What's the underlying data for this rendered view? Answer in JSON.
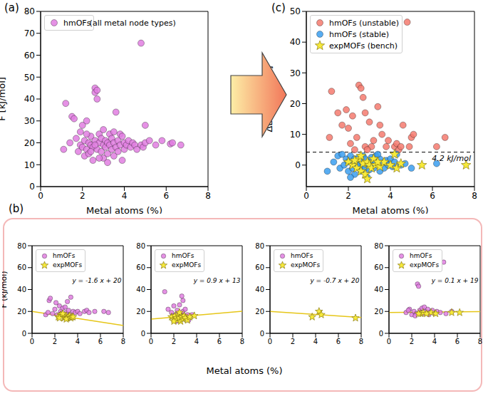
{
  "chart_data": [
    {
      "type": "scatter",
      "title": "(a)",
      "xlabel": "Metal atoms (%)",
      "ylabel": "F [kJ/mol]",
      "xlim": [
        0,
        8
      ],
      "xticks": [
        0,
        2,
        4,
        6,
        8
      ],
      "ylim": [
        0,
        80
      ],
      "yticks": [
        0,
        10,
        20,
        30,
        40,
        50,
        60,
        70,
        80
      ],
      "legend": "upper left",
      "annotations": [
        "(all metal node types)"
      ],
      "series": [
        {
          "name": "hmOFs",
          "color": "#e07ee0",
          "marker": "circle",
          "x": [
            1.2,
            1.1,
            1.5,
            1.6,
            1.7,
            1.8,
            1.9,
            2.0,
            2.0,
            2.1,
            2.1,
            2.2,
            2.2,
            2.3,
            2.3,
            2.4,
            2.4,
            2.5,
            2.5,
            2.6,
            2.6,
            2.6,
            2.7,
            2.7,
            2.7,
            2.8,
            2.8,
            2.9,
            2.9,
            3.0,
            3.0,
            3.0,
            3.1,
            3.1,
            3.2,
            3.2,
            3.3,
            3.3,
            3.4,
            3.4,
            3.5,
            3.5,
            3.6,
            3.6,
            3.7,
            3.7,
            3.8,
            3.8,
            3.9,
            4.0,
            4.0,
            4.1,
            4.2,
            4.3,
            4.4,
            4.5,
            4.6,
            4.8,
            4.8,
            4.9,
            5.0,
            5.0,
            5.2,
            5.5,
            5.8,
            6.2,
            6.3,
            6.7,
            1.4,
            1.9,
            2.4,
            2.8,
            3.2,
            3.9,
            2.2,
            2.6,
            3.5
          ],
          "values": [
            38,
            17,
            32,
            31,
            22,
            16,
            19,
            28,
            18,
            14,
            21,
            30,
            17,
            20,
            15,
            19,
            23,
            12,
            18,
            45,
            43,
            21,
            44,
            40,
            17,
            20,
            24,
            16,
            22,
            26,
            19,
            13,
            21,
            18,
            20,
            15,
            24,
            19,
            17,
            22,
            20,
            14,
            34,
            18,
            21,
            16,
            24,
            19,
            12,
            20,
            17,
            19,
            21,
            18,
            20,
            19,
            17,
            65.5,
            19,
            18,
            28,
            20,
            21,
            19,
            21,
            19.5,
            20,
            19,
            20,
            25,
            16,
            13,
            11,
            23,
            24,
            19,
            25
          ]
        }
      ]
    },
    {
      "type": "scatter",
      "title": "(c)",
      "xlabel": "Metal atoms (%)",
      "ylabel": "ΔLM F [kJ/mol]",
      "xlim": [
        0,
        8
      ],
      "xticks": [
        0,
        2,
        4,
        6,
        8
      ],
      "ylim": [
        -7,
        50
      ],
      "yticks": [
        0,
        10,
        20,
        30,
        40,
        50
      ],
      "legend": "upper left",
      "reference_line": {
        "y": 4.2,
        "label": "4.2 kJ/mol",
        "line_style": "dashed",
        "color": "#000000"
      },
      "series": [
        {
          "name": "hmOFs (unstable)",
          "color": "#f47a6e",
          "marker": "circle",
          "x": [
            1.2,
            1.1,
            1.5,
            1.7,
            1.9,
            2.0,
            2.1,
            2.2,
            2.4,
            2.5,
            2.6,
            2.7,
            2.8,
            2.8,
            3.0,
            3.1,
            3.2,
            3.4,
            3.5,
            3.6,
            3.8,
            3.9,
            4.2,
            4.3,
            4.4,
            4.5,
            4.6,
            4.8,
            4.9,
            5.0,
            5.1,
            6.2,
            6.6,
            2.3,
            2.9
          ],
          "values": [
            24,
            9,
            17,
            13,
            18,
            12,
            7,
            16,
            9,
            26,
            25,
            22,
            17,
            6,
            14,
            6,
            8,
            19,
            13,
            10,
            6,
            8,
            6,
            7,
            5,
            6,
            13,
            46.5,
            6,
            9,
            10,
            6,
            9,
            5,
            5
          ]
        },
        {
          "name": "hmOFs (stable)",
          "color": "#3b9ff0",
          "marker": "circle",
          "x": [
            1.0,
            1.3,
            1.5,
            1.6,
            1.8,
            1.9,
            2.0,
            2.0,
            2.1,
            2.2,
            2.2,
            2.3,
            2.3,
            2.4,
            2.4,
            2.5,
            2.5,
            2.6,
            2.6,
            2.7,
            2.7,
            2.8,
            2.8,
            2.9,
            2.9,
            3.0,
            3.0,
            3.1,
            3.1,
            3.2,
            3.3,
            3.3,
            3.4,
            3.5,
            3.5,
            3.6,
            3.7,
            3.8,
            3.9,
            4.0,
            4.1,
            4.2,
            4.3,
            4.5,
            4.7,
            5.0,
            6.2,
            1.7,
            2.1,
            3.4
          ],
          "values": [
            -2,
            1,
            3,
            -1,
            0,
            2,
            -2,
            1,
            3,
            -1,
            0.5,
            2,
            -3,
            1,
            -0.5,
            2.5,
            0,
            -2,
            1.5,
            3,
            0,
            -1,
            2,
            0.5,
            -4,
            1,
            -1.5,
            2.5,
            0,
            -1,
            1,
            3,
            0,
            -2,
            2,
            0.5,
            -1,
            1.5,
            0,
            2,
            -0.5,
            1,
            3.5,
            0,
            0.5,
            -1,
            0.5,
            3.5,
            -4,
            3.5
          ]
        },
        {
          "name": "expMOFs (bench)",
          "color": "#f7ea3a",
          "marker": "star",
          "x": [
            2.0,
            2.2,
            2.4,
            2.5,
            2.6,
            2.7,
            2.8,
            2.9,
            3.0,
            3.1,
            3.2,
            3.3,
            3.5,
            3.7,
            4.0,
            4.2,
            4.3,
            4.5,
            2.3,
            2.9,
            5.5,
            7.6,
            3.4,
            2.6
          ],
          "values": [
            1,
            0,
            -1,
            2,
            -2,
            0.5,
            -3,
            1,
            0,
            -1,
            2,
            0,
            -0.5,
            1,
            0,
            3.5,
            -1,
            0.5,
            1.5,
            -4.5,
            0,
            0,
            1,
            3
          ]
        }
      ]
    },
    {
      "type": "scatter",
      "title": "(b)",
      "xlabel": "Metal atoms (%)",
      "ylabel": "F (kJ/mol)",
      "xlim": [
        0,
        8
      ],
      "xticks": [
        0,
        2,
        4,
        6,
        8
      ],
      "ylim": [
        0,
        80
      ],
      "yticks": [
        0,
        20,
        40,
        60,
        80
      ],
      "legend": "upper left",
      "annotations": [
        "y = -1.6 x + 20"
      ],
      "fit": {
        "x": [
          0,
          8
        ],
        "values": [
          20,
          7.2
        ],
        "color": "#e6c619"
      },
      "series": [
        {
          "name": "hmOFs",
          "color": "#e07ee0",
          "marker": "circle",
          "x": [
            1.5,
            1.6,
            1.8,
            2.0,
            2.1,
            2.2,
            2.4,
            2.5,
            2.6,
            2.7,
            2.8,
            3.0,
            3.2,
            3.3,
            3.5,
            3.6,
            3.8,
            4.0,
            4.2,
            4.6,
            4.8,
            5.0,
            5.5,
            6.3,
            6.7,
            1.2,
            1.4,
            3.1,
            3.4,
            2.9
          ],
          "values": [
            30,
            32,
            18,
            22,
            28,
            17,
            25,
            20,
            18,
            23,
            16,
            19,
            21,
            17,
            15,
            20,
            19,
            20,
            18,
            20,
            21,
            19,
            20,
            20,
            19,
            17,
            19,
            29,
            33,
            24
          ]
        },
        {
          "name": "expMOFs",
          "color": "#f7ea3a",
          "marker": "star",
          "x": [
            2.3,
            2.5,
            2.6,
            2.8,
            2.9,
            3.0,
            3.1,
            3.2,
            3.3,
            3.4,
            3.5,
            2.7,
            3.6,
            2.4,
            3.0
          ],
          "values": [
            15,
            17,
            16,
            14,
            15,
            16,
            14,
            15,
            16,
            14,
            15,
            18,
            15,
            14,
            13
          ]
        }
      ]
    },
    {
      "type": "scatter",
      "xlim": [
        0,
        8
      ],
      "xticks": [
        0,
        2,
        4,
        6,
        8
      ],
      "ylim": [
        0,
        80
      ],
      "yticks": [
        0,
        20,
        40,
        60,
        80
      ],
      "legend": "upper left",
      "annotations": [
        "y = 0.9 x + 13"
      ],
      "fit": {
        "x": [
          0,
          8
        ],
        "values": [
          13,
          20.2
        ],
        "color": "#e6c619"
      },
      "series": [
        {
          "name": "hmOFs",
          "color": "#e07ee0",
          "marker": "circle",
          "x": [
            1.2,
            1.5,
            1.8,
            1.9,
            2.0,
            2.1,
            2.2,
            2.3,
            2.4,
            2.5,
            2.6,
            2.7,
            2.8,
            2.8,
            2.9,
            3.0,
            3.1,
            3.2,
            2.5,
            2.7,
            3.3,
            3.6,
            2.2
          ],
          "values": [
            38,
            22,
            19,
            16,
            25,
            14,
            17,
            21,
            12,
            15,
            18,
            13,
            30,
            20,
            16,
            22,
            14,
            17,
            26,
            34,
            12,
            17,
            11
          ]
        },
        {
          "name": "expMOFs",
          "color": "#f7ea3a",
          "marker": "star",
          "x": [
            1.8,
            2.0,
            2.1,
            2.2,
            2.3,
            2.4,
            2.5,
            2.6,
            2.7,
            2.8,
            2.9,
            3.0,
            3.2,
            3.4,
            3.8,
            2.5,
            2.0
          ],
          "values": [
            15,
            13,
            16,
            14,
            12,
            17,
            14,
            11,
            15,
            13,
            16,
            14,
            12,
            15,
            16,
            19,
            11
          ]
        }
      ]
    },
    {
      "type": "scatter",
      "xlim": [
        0,
        8
      ],
      "xticks": [
        0,
        2,
        4,
        6,
        8
      ],
      "ylim": [
        0,
        80
      ],
      "yticks": [
        0,
        20,
        40,
        60,
        80
      ],
      "legend": "upper left",
      "annotations": [
        "y = -0.7 x + 20"
      ],
      "fit": {
        "x": [
          0,
          8
        ],
        "values": [
          20,
          14.4
        ],
        "color": "#e6c619"
      },
      "series": [
        {
          "name": "hmOFs",
          "color": "#e07ee0",
          "marker": "circle",
          "x": [],
          "values": []
        },
        {
          "name": "expMOFs",
          "color": "#f7ea3a",
          "marker": "star",
          "x": [
            3.7,
            4.3,
            4.5,
            7.5
          ],
          "values": [
            15,
            20,
            17,
            14
          ]
        }
      ]
    },
    {
      "type": "scatter",
      "xlim": [
        0,
        8
      ],
      "xticks": [
        0,
        2,
        4,
        6,
        8
      ],
      "ylim": [
        0,
        80
      ],
      "yticks": [
        0,
        20,
        40,
        60,
        80
      ],
      "legend": "upper left",
      "annotations": [
        "y = 0.1 x + 19"
      ],
      "fit": {
        "x": [
          0,
          8
        ],
        "values": [
          19,
          19.8
        ],
        "color": "#e6c619"
      },
      "series": [
        {
          "name": "hmOFs",
          "color": "#e07ee0",
          "marker": "circle",
          "x": [
            1.5,
            1.8,
            2.0,
            2.2,
            2.4,
            2.5,
            2.6,
            2.7,
            2.8,
            2.9,
            3.0,
            3.2,
            3.4,
            3.6,
            3.8,
            4.0,
            4.2,
            4.5,
            4.8,
            5.0,
            5.5,
            2.3,
            3.1,
            1.7,
            3.5
          ],
          "values": [
            19,
            22,
            17,
            20,
            18,
            45,
            43,
            21,
            19,
            23,
            18,
            20,
            22,
            19,
            21,
            18,
            20,
            19,
            65,
            18,
            20,
            16,
            24,
            21,
            17
          ]
        },
        {
          "name": "expMOFs",
          "color": "#f7ea3a",
          "marker": "star",
          "x": [
            2.8,
            3.0,
            3.3,
            3.7,
            4.1,
            5.5,
            6.2,
            2.6
          ],
          "values": [
            18,
            19,
            18,
            19,
            18,
            19,
            19,
            18
          ]
        }
      ]
    }
  ]
}
